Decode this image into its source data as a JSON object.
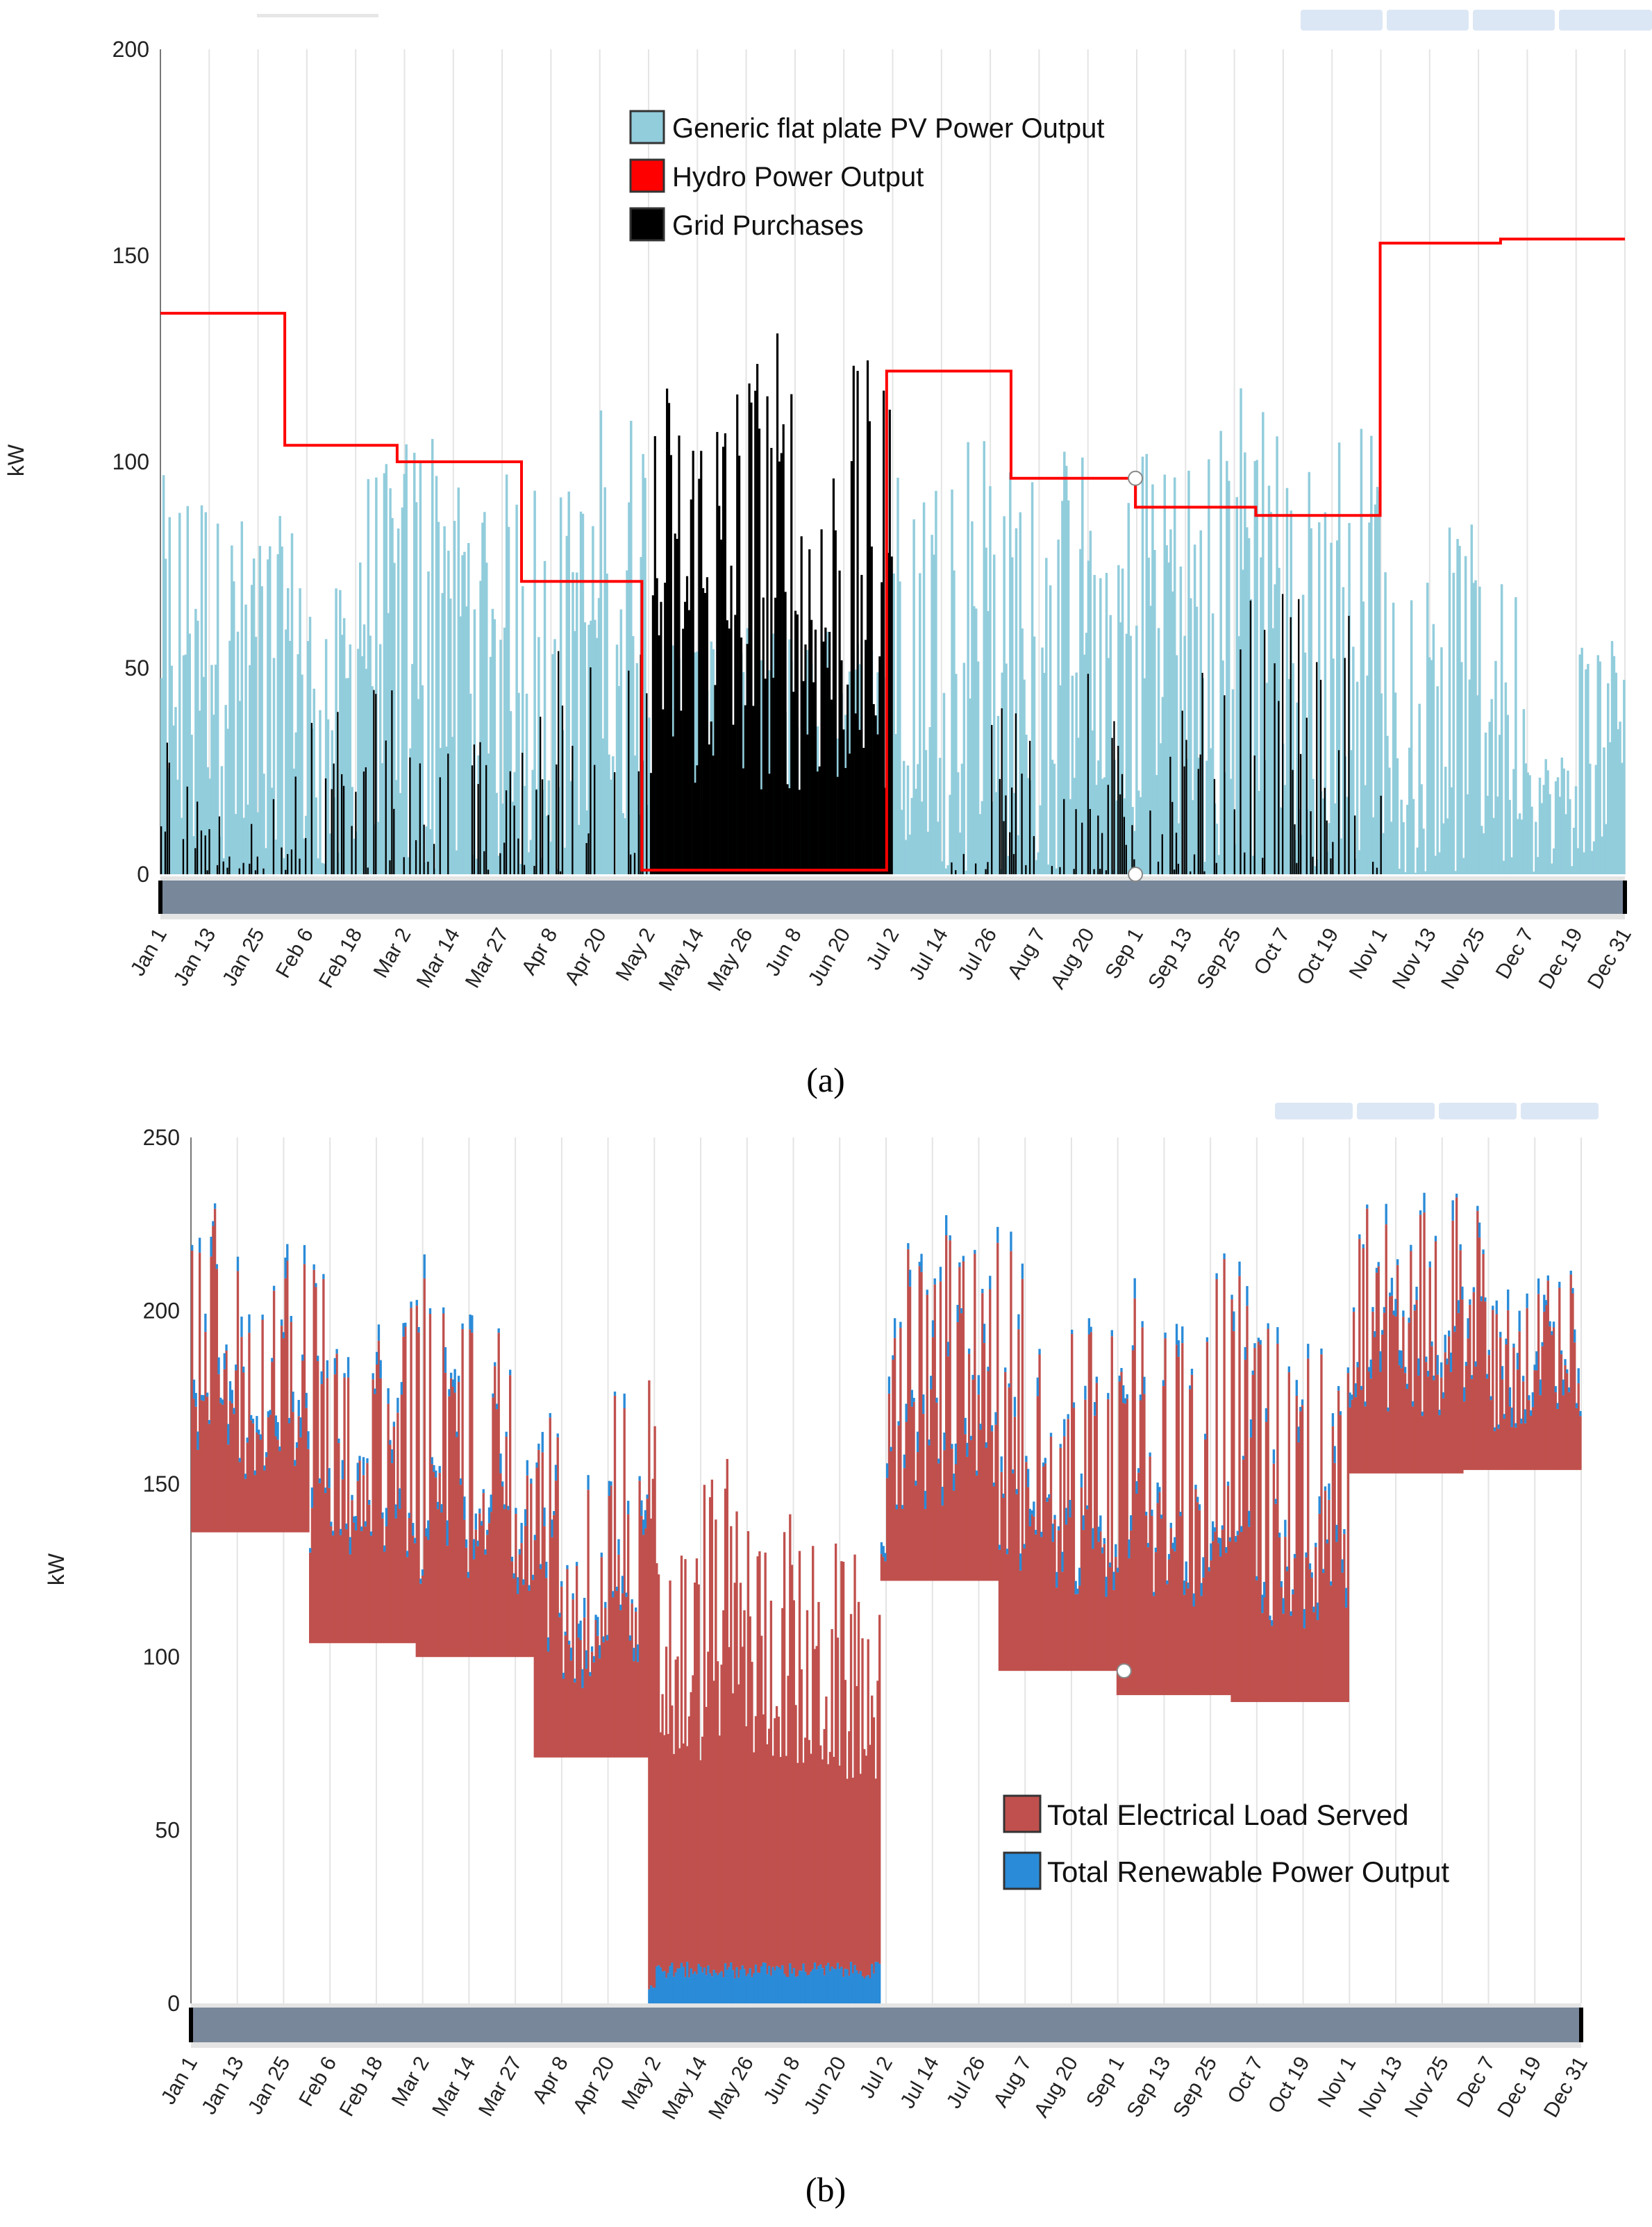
{
  "colors": {
    "pv": "#92cddc",
    "hydro": "#ff0000",
    "grid": "#000000",
    "load": "#c0504d",
    "renewable": "#2a8bd8",
    "scrollbar": "#78879a",
    "gridline": "#e4e4e4"
  },
  "chart_data": [
    {
      "id": "a",
      "type": "bar",
      "caption": "(a)",
      "ylabel": "kW",
      "xlabel": "",
      "ylim": [
        0,
        200
      ],
      "yticks": [
        "0",
        "50",
        "100",
        "150",
        "200"
      ],
      "ytick_values": [
        0,
        50,
        100,
        150,
        200
      ],
      "grid": "vertical",
      "legend_position": "top-center",
      "xticks": [
        "Jan 1",
        "Jan 13",
        "Jan 25",
        "Feb 6",
        "Feb 18",
        "Mar 2",
        "Mar 14",
        "Mar 27",
        "Apr 8",
        "Apr 20",
        "May 2",
        "May 14",
        "May 26",
        "Jun 8",
        "Jun 20",
        "Jul 2",
        "Jul 14",
        "Jul 26",
        "Aug 7",
        "Aug 20",
        "Sep 1",
        "Sep 13",
        "Sep 25",
        "Oct 7",
        "Oct 19",
        "Nov 1",
        "Nov 13",
        "Nov 25",
        "Dec 7",
        "Dec 19",
        "Dec 31"
      ],
      "legend": [
        "Generic flat plate PV Power Output",
        "Hydro Power Output",
        "Grid Purchases"
      ],
      "series": [
        {
          "name": "Generic flat plate PV Power Output",
          "values": [
            97,
            88,
            87,
            70,
            100,
            112,
            98,
            98,
            95,
            115,
            60,
            60,
            60,
            60,
            60,
            100,
            112,
            100,
            105,
            95,
            112,
            110,
            122,
            100,
            110,
            77,
            85,
            72,
            30,
            60
          ]
        },
        {
          "name": "Hydro Power Output",
          "months": [
            "Jan",
            "Feb",
            "Mar",
            "Apr",
            "May",
            "Jun",
            "Jul",
            "Aug",
            "Sep",
            "Oct",
            "Nov",
            "Dec"
          ],
          "values": [
            136,
            104,
            100,
            71,
            1,
            1,
            122,
            96,
            89,
            87,
            153,
            154
          ]
        },
        {
          "name": "Grid Purchases",
          "values": [
            45,
            15,
            28,
            40,
            47,
            38,
            35,
            42,
            65,
            55,
            126,
            130,
            135,
            115,
            125,
            0,
            5,
            48,
            50,
            48,
            40,
            50,
            68,
            72,
            76,
            0,
            0,
            0,
            0,
            0
          ]
        }
      ]
    },
    {
      "id": "b",
      "type": "area",
      "caption": "(b)",
      "ylabel": "kW",
      "xlabel": "",
      "ylim": [
        0,
        250
      ],
      "yticks": [
        "0",
        "50",
        "100",
        "150",
        "200",
        "250"
      ],
      "ytick_values": [
        0,
        50,
        100,
        150,
        200,
        250
      ],
      "grid": "vertical",
      "legend_position": "bottom-right",
      "xticks": [
        "Jan 1",
        "Jan 13",
        "Jan 25",
        "Feb 6",
        "Feb 18",
        "Mar 2",
        "Mar 14",
        "Mar 27",
        "Apr 8",
        "Apr 20",
        "May 2",
        "May 14",
        "May 26",
        "Jun 8",
        "Jun 20",
        "Jul 2",
        "Jul 14",
        "Jul 26",
        "Aug 7",
        "Aug 20",
        "Sep 1",
        "Sep 13",
        "Sep 25",
        "Oct 7",
        "Oct 19",
        "Nov 1",
        "Nov 13",
        "Nov 25",
        "Dec 7",
        "Dec 19",
        "Dec 31"
      ],
      "legend": [
        "Total Electrical Load Served",
        "Total Renewable Power Output"
      ],
      "series": [
        {
          "name": "Total Electrical Load Served",
          "values": [
            233,
            207,
            224,
            190,
            205,
            212,
            198,
            175,
            162,
            185,
            140,
            158,
            145,
            135,
            130,
            220,
            222,
            225,
            203,
            200,
            210,
            205,
            215,
            195,
            190,
            232,
            232,
            235,
            205,
            212
          ],
          "monthly_base": [
            136,
            104,
            100,
            71,
            10,
            10,
            122,
            96,
            89,
            87,
            153,
            154
          ]
        },
        {
          "name": "Total Renewable Power Output",
          "values": [
            6,
            6,
            6,
            6,
            6,
            8,
            6,
            6,
            6,
            6,
            12,
            12,
            12,
            12,
            12,
            6,
            6,
            6,
            6,
            6,
            6,
            6,
            6,
            6,
            6,
            6,
            6,
            6,
            6,
            6
          ]
        }
      ]
    }
  ]
}
